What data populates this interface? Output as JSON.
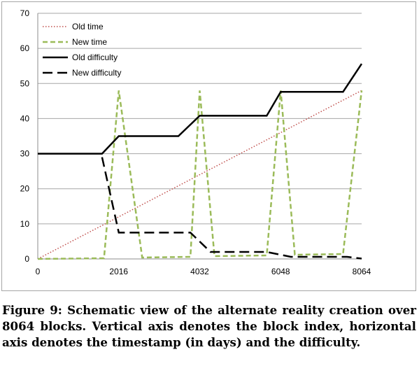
{
  "caption": "Figure 9: Schematic view of the alternate reality creation over 8064 blocks. Vertical axis denotes the block index, horizontal axis denotes the timestamp (in days) and the difficulty.",
  "chart_data": {
    "type": "line",
    "x": [
      0,
      1600,
      2016,
      2600,
      3800,
      4032,
      4400,
      5700,
      6048,
      6400,
      7600,
      8064
    ],
    "xticks": [
      0,
      2016,
      4032,
      6048,
      8064
    ],
    "yticks": [
      0,
      10,
      20,
      30,
      40,
      50,
      60,
      70
    ],
    "xlim": [
      0,
      8064
    ],
    "ylim": [
      0,
      70
    ],
    "grid": "horizontal",
    "legend_position": "top-left",
    "series": [
      {
        "name": "Old time",
        "color": "#c0504d",
        "style": "dotted",
        "x": [
          0,
          8064
        ],
        "y": [
          0,
          48
        ]
      },
      {
        "name": "New time",
        "color": "#9bbb59",
        "style": "dashed",
        "x": [
          0,
          1650,
          2016,
          2600,
          3800,
          4032,
          4400,
          5700,
          6048,
          6400,
          7600,
          8064
        ],
        "y": [
          0,
          0.2,
          48,
          0.4,
          0.6,
          48,
          0.8,
          1.0,
          48,
          1.2,
          1.4,
          48
        ]
      },
      {
        "name": "Old difficulty",
        "color": "#000000",
        "style": "solid",
        "x": [
          0,
          1600,
          2016,
          3500,
          4032,
          5700,
          6048,
          7600,
          8064
        ],
        "y": [
          30,
          30,
          35,
          35,
          40.8,
          40.8,
          47.6,
          47.6,
          55.6
        ]
      },
      {
        "name": "New difficulty",
        "color": "#000000",
        "style": "long-dash",
        "x": [
          1600,
          2016,
          3800,
          4300,
          5700,
          6300,
          7700,
          8064
        ],
        "y": [
          29,
          7.5,
          7.5,
          2,
          2,
          0.6,
          0.6,
          0.1
        ]
      }
    ]
  }
}
